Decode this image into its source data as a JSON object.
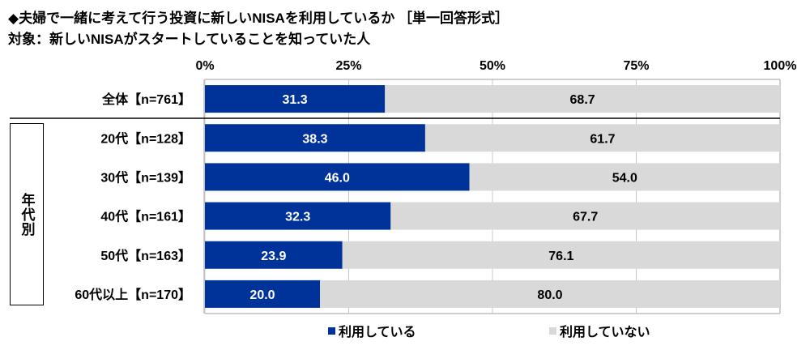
{
  "title": "◆夫婦で一緒に考えて行う投資に新しいNISAを利用しているか ［単一回答形式］",
  "subtitle": "対象：新しいNISAがスタートしていることを知っていた人",
  "group_label": "年代別",
  "chart_data": {
    "type": "bar",
    "orientation": "horizontal",
    "stacked": true,
    "categories": [
      "全体【n=761】",
      "20代【n=128】",
      "30代【n=139】",
      "40代【n=161】",
      "50代【n=163】",
      "60代以上【n=170】"
    ],
    "series": [
      {
        "name": "利用している",
        "color": "#003399",
        "values": [
          31.3,
          38.3,
          46.0,
          32.3,
          23.9,
          20.0
        ]
      },
      {
        "name": "利用していない",
        "color": "#d9d9d9",
        "values": [
          68.7,
          61.7,
          54.0,
          67.7,
          76.1,
          80.0
        ]
      }
    ],
    "xlim": [
      0,
      100
    ],
    "xticks": [
      "0%",
      "25%",
      "50%",
      "75%",
      "100%"
    ],
    "grid": true,
    "legend": "bottom"
  }
}
